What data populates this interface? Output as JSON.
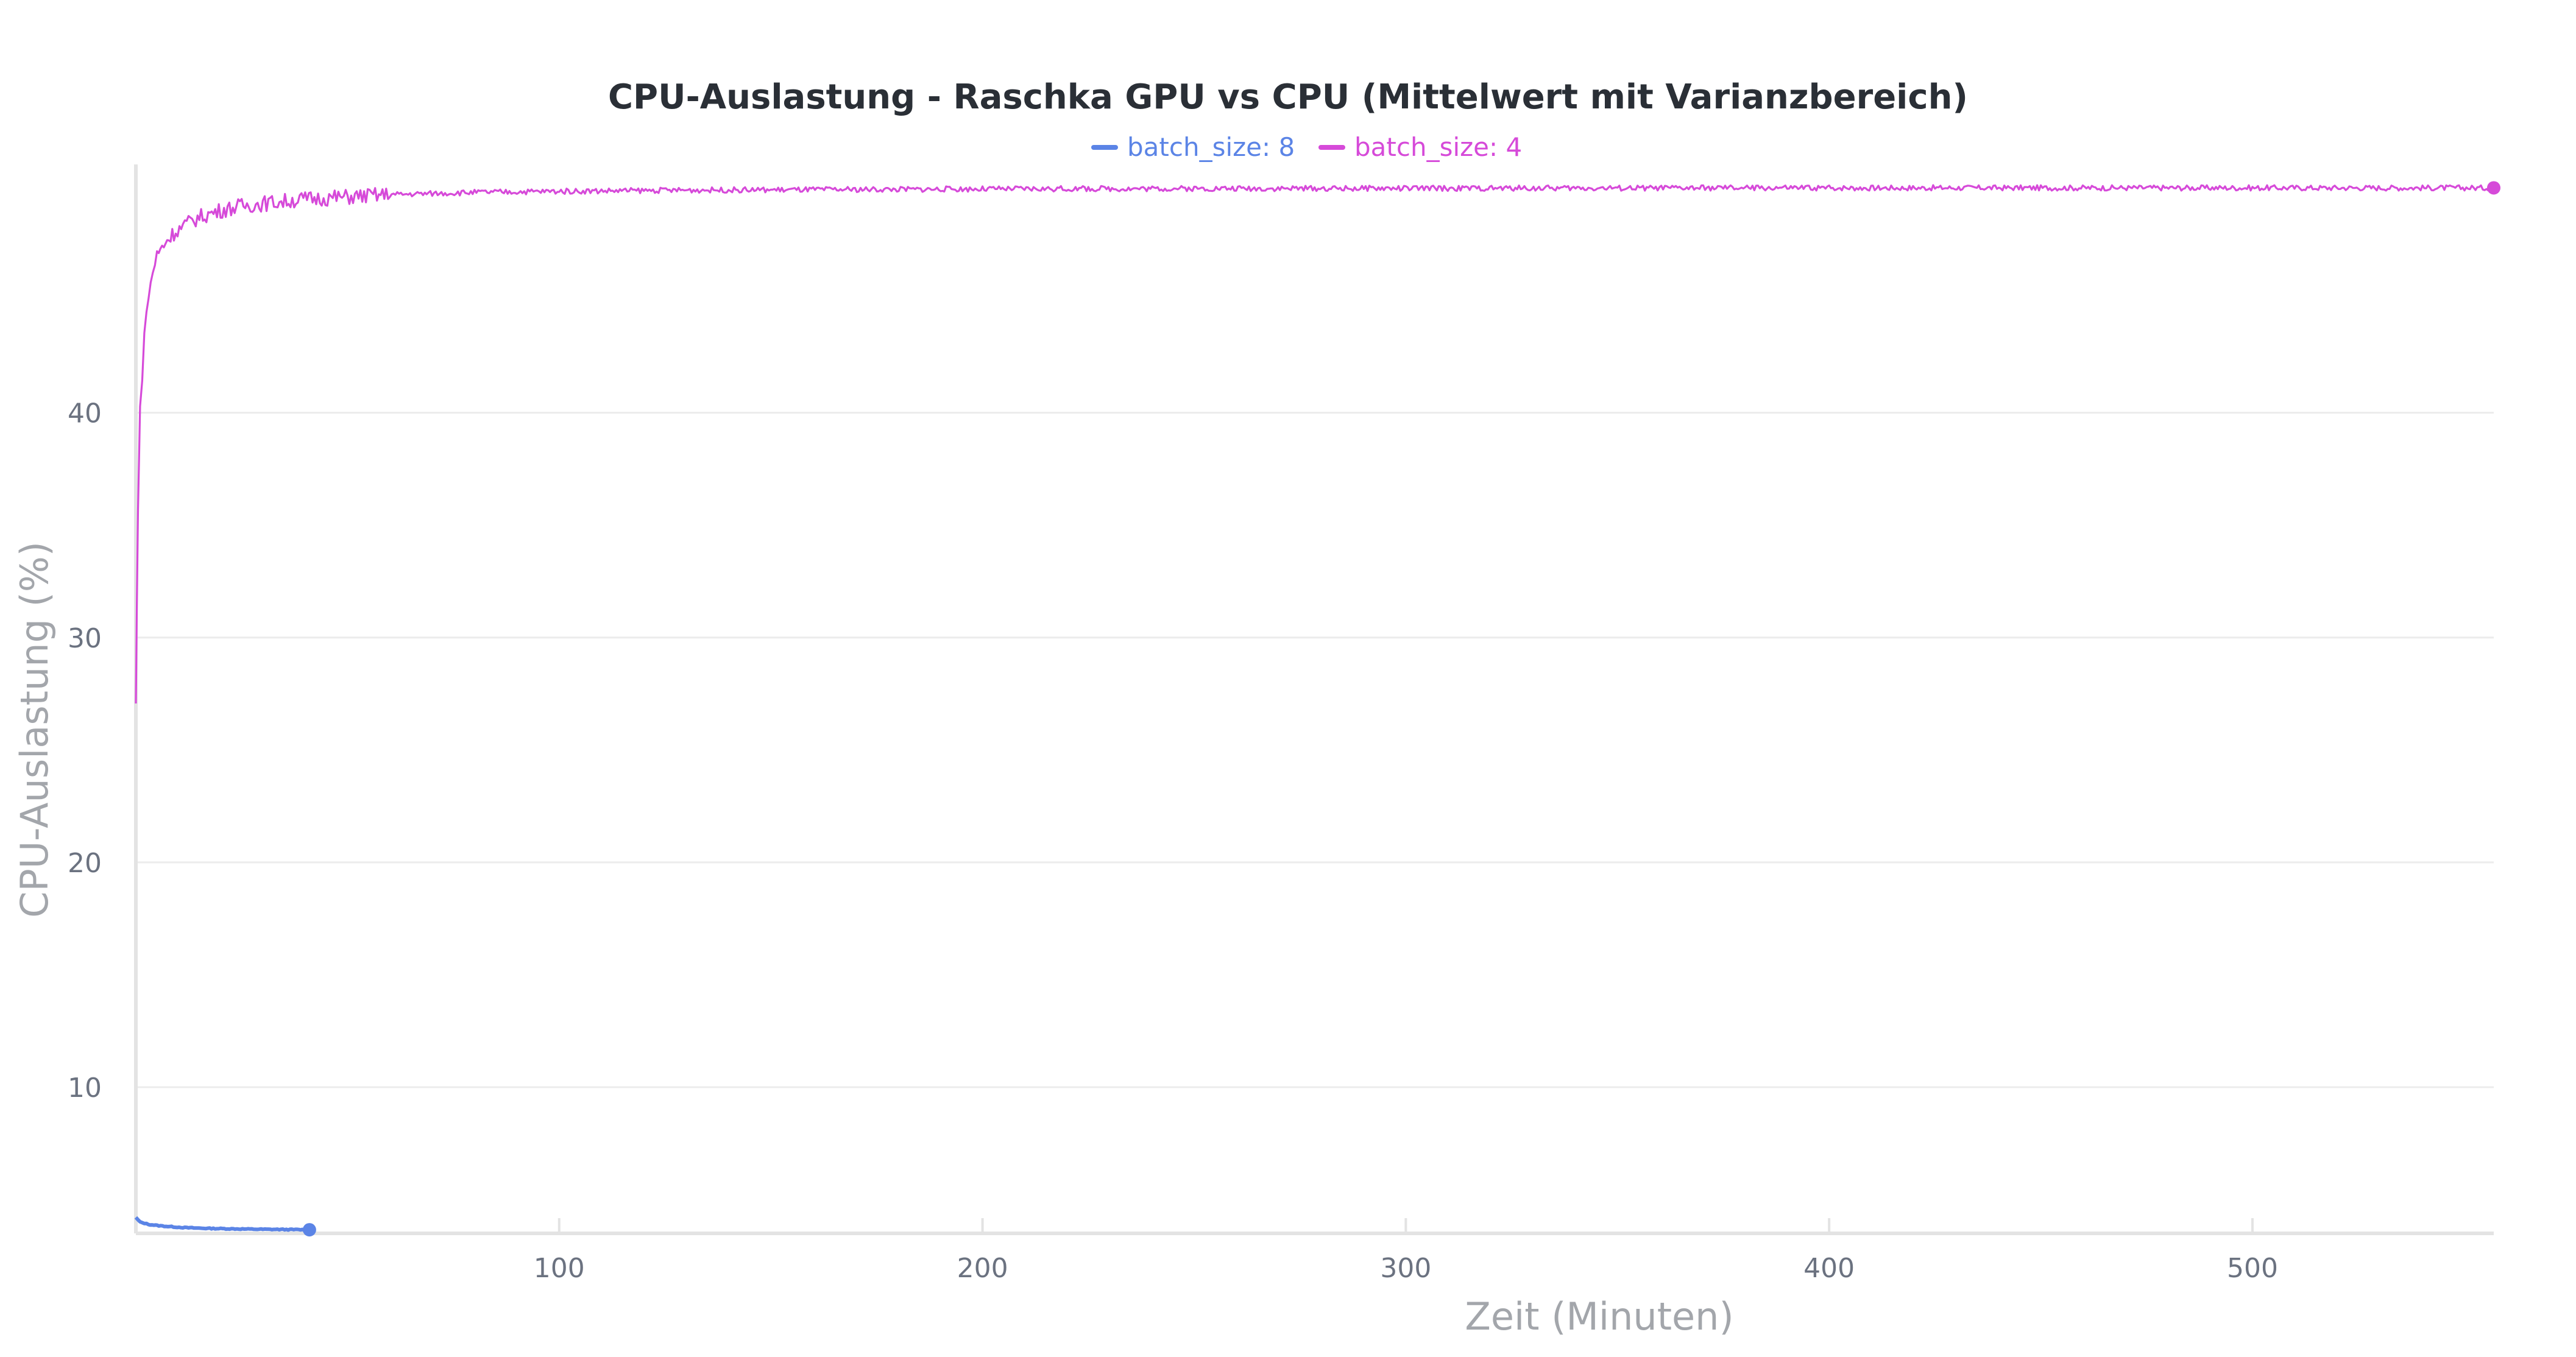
{
  "chart_data": {
    "type": "line",
    "title": "CPU-Auslastung - Raschka GPU vs CPU (Mittelwert mit Varianzbereich)",
    "xlabel": "Zeit (Minuten)",
    "ylabel": "CPU-Auslastung (%)",
    "xlim": [
      0,
      557
    ],
    "ylim": [
      3.5,
      50.5
    ],
    "x_ticks": [
      100,
      200,
      300,
      400,
      500
    ],
    "y_ticks": [
      10,
      20,
      30,
      40
    ],
    "grid": true,
    "legend_position": "top-center",
    "series": [
      {
        "name": "batch_size: 8",
        "color": "#5b84e6",
        "x": [
          0,
          1,
          2,
          3,
          5,
          8,
          12,
          17,
          23,
          30,
          36,
          41
        ],
        "y": [
          4.2,
          4.0,
          3.95,
          3.9,
          3.85,
          3.8,
          3.75,
          3.72,
          3.7,
          3.68,
          3.67,
          3.66
        ]
      },
      {
        "name": "batch_size: 4",
        "color": "#d64ad9",
        "x": [
          0,
          0.5,
          1,
          2,
          3,
          4,
          5,
          7,
          9,
          12,
          15,
          20,
          25,
          30,
          40,
          50,
          60,
          80,
          100,
          130,
          160,
          200,
          250,
          300,
          350,
          400,
          450,
          500,
          557
        ],
        "y": [
          27,
          36,
          40,
          43.5,
          45.2,
          46.3,
          47.0,
          47.6,
          48.0,
          48.4,
          48.7,
          49.0,
          49.2,
          49.3,
          49.5,
          49.6,
          49.7,
          49.8,
          49.85,
          49.9,
          49.92,
          49.95,
          49.97,
          49.98,
          49.99,
          50.0,
          50.0,
          50.0,
          50.0
        ]
      }
    ]
  }
}
